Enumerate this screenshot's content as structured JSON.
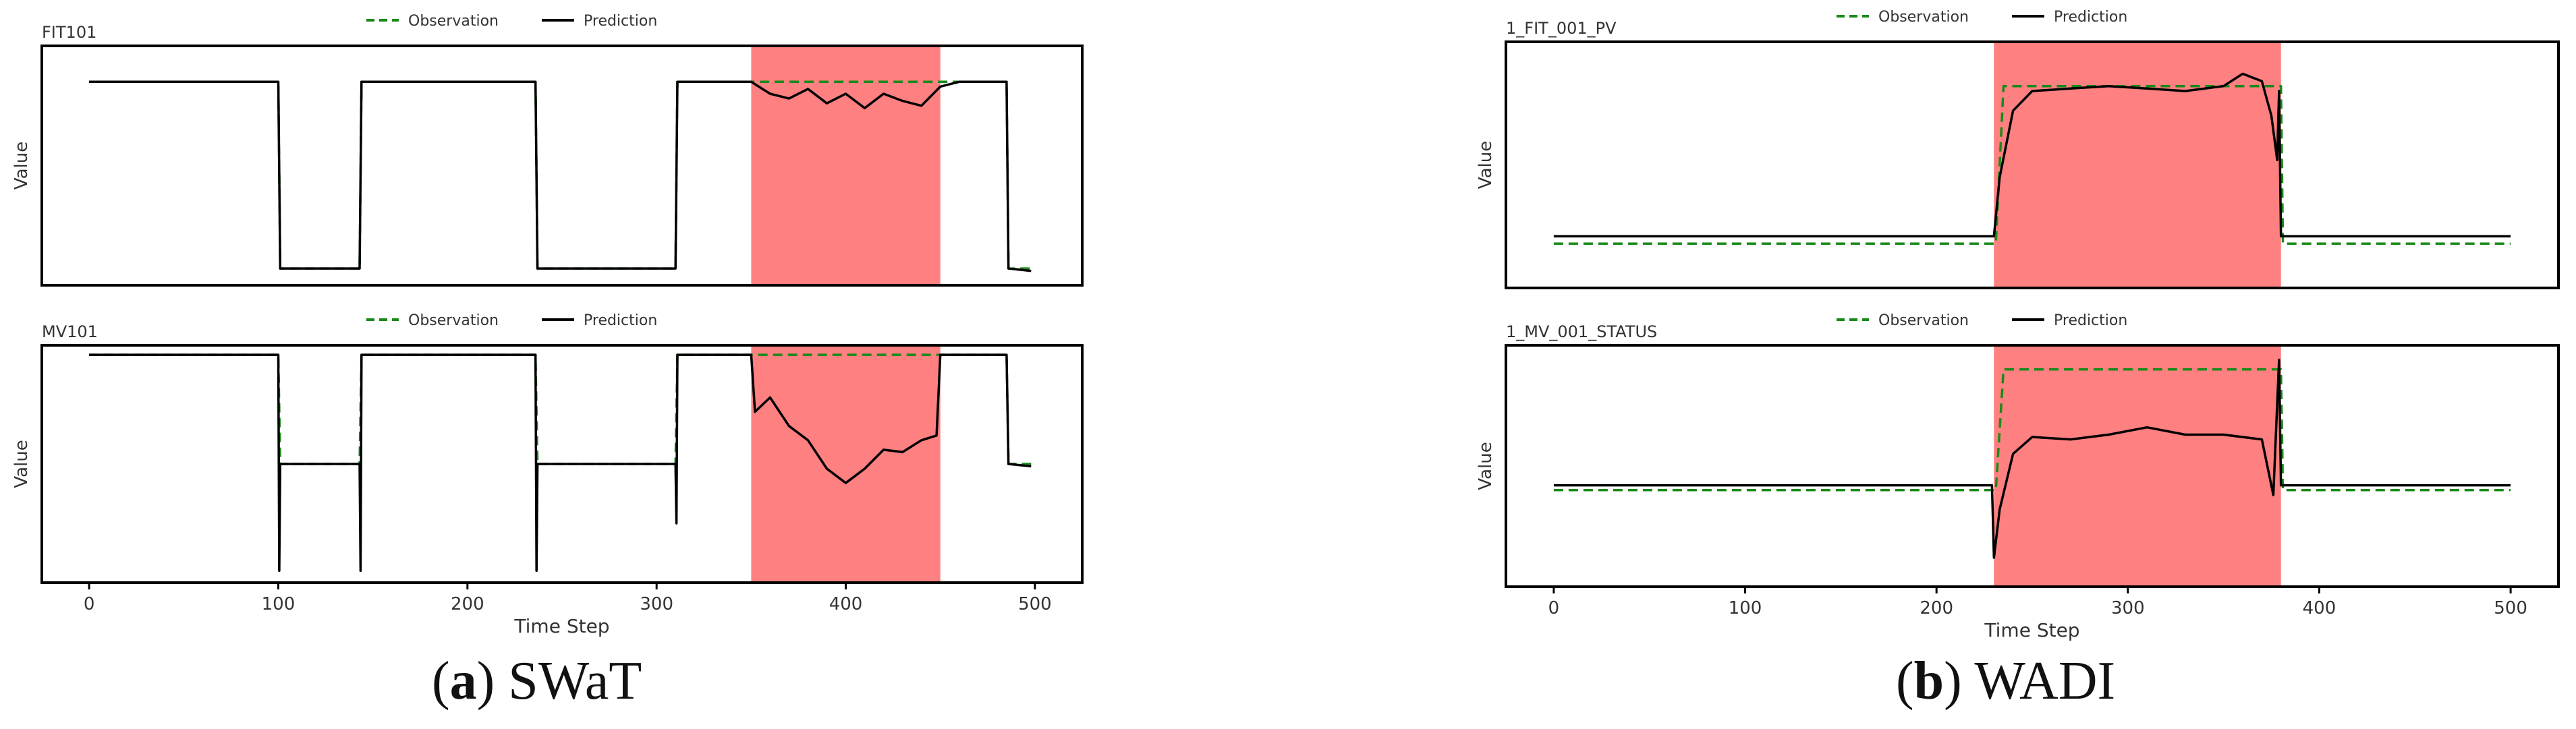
{
  "captions": [
    {
      "open": "(",
      "letter": "a",
      "close": ")",
      "name": " SWaT"
    },
    {
      "open": "(",
      "letter": "b",
      "close": ")",
      "name": " WADI"
    }
  ],
  "colors": {
    "observation": "#1a8a1a",
    "prediction": "#000000",
    "anomaly": "#ff8080",
    "frame": "#000000"
  },
  "chart_data": [
    {
      "type": "line",
      "title": "FIT101",
      "xlabel": "",
      "ylabel": "Value",
      "xlim": [
        -25,
        525
      ],
      "ylim": [
        0,
        1
      ],
      "xticks": [],
      "grid": false,
      "legend": "top-center",
      "anomaly_region": [
        350,
        450
      ],
      "series": [
        {
          "name": "Observation",
          "style": "dashed",
          "points": [
            [
              0,
              0.85
            ],
            [
              100,
              0.85
            ],
            [
              101,
              0.07
            ],
            [
              143,
              0.07
            ],
            [
              144,
              0.85
            ],
            [
              236,
              0.85
            ],
            [
              237,
              0.07
            ],
            [
              310,
              0.07
            ],
            [
              311,
              0.85
            ],
            [
              485,
              0.85
            ],
            [
              486,
              0.07
            ],
            [
              498,
              0.07
            ]
          ]
        },
        {
          "name": "Prediction",
          "style": "solid",
          "points": [
            [
              0,
              0.85
            ],
            [
              100,
              0.85
            ],
            [
              101,
              0.07
            ],
            [
              143,
              0.07
            ],
            [
              144,
              0.85
            ],
            [
              236,
              0.85
            ],
            [
              237,
              0.07
            ],
            [
              310,
              0.07
            ],
            [
              311,
              0.85
            ],
            [
              350,
              0.85
            ],
            [
              360,
              0.8
            ],
            [
              370,
              0.78
            ],
            [
              380,
              0.82
            ],
            [
              390,
              0.76
            ],
            [
              400,
              0.8
            ],
            [
              410,
              0.74
            ],
            [
              420,
              0.8
            ],
            [
              430,
              0.77
            ],
            [
              440,
              0.75
            ],
            [
              450,
              0.83
            ],
            [
              460,
              0.85
            ],
            [
              485,
              0.85
            ],
            [
              486,
              0.07
            ],
            [
              498,
              0.06
            ]
          ]
        }
      ]
    },
    {
      "type": "line",
      "title": "1_FIT_001_PV",
      "xlabel": "",
      "ylabel": "Value",
      "xlim": [
        -25,
        525
      ],
      "ylim": [
        0,
        1
      ],
      "xticks": [],
      "grid": false,
      "legend": "top-center",
      "anomaly_region": [
        230,
        380
      ],
      "series": [
        {
          "name": "Observation",
          "style": "dashed",
          "points": [
            [
              0,
              0.18
            ],
            [
              231,
              0.18
            ],
            [
              235,
              0.82
            ],
            [
              380,
              0.82
            ],
            [
              381,
              0.18
            ],
            [
              500,
              0.18
            ]
          ]
        },
        {
          "name": "Prediction",
          "style": "solid",
          "points": [
            [
              0,
              0.21
            ],
            [
              230,
              0.21
            ],
            [
              233,
              0.45
            ],
            [
              240,
              0.72
            ],
            [
              250,
              0.8
            ],
            [
              270,
              0.81
            ],
            [
              290,
              0.82
            ],
            [
              310,
              0.81
            ],
            [
              330,
              0.8
            ],
            [
              350,
              0.82
            ],
            [
              360,
              0.87
            ],
            [
              370,
              0.84
            ],
            [
              375,
              0.7
            ],
            [
              378,
              0.52
            ],
            [
              379,
              0.8
            ],
            [
              380,
              0.21
            ],
            [
              500,
              0.21
            ]
          ]
        }
      ]
    },
    {
      "type": "line",
      "title": "MV101",
      "xlabel": "Time Step",
      "ylabel": "Value",
      "xlim": [
        -25,
        525
      ],
      "ylim": [
        0,
        1
      ],
      "xticks": [
        0,
        100,
        200,
        300,
        400,
        500
      ],
      "grid": false,
      "legend": "top-center",
      "anomaly_region": [
        350,
        450
      ],
      "series": [
        {
          "name": "Observation",
          "style": "dashed",
          "points": [
            [
              0,
              0.96
            ],
            [
              100,
              0.96
            ],
            [
              101,
              0.5
            ],
            [
              143,
              0.5
            ],
            [
              144,
              0.96
            ],
            [
              236,
              0.96
            ],
            [
              237,
              0.5
            ],
            [
              310,
              0.5
            ],
            [
              311,
              0.96
            ],
            [
              450,
              0.96
            ],
            [
              451,
              0.96
            ],
            [
              485,
              0.96
            ],
            [
              486,
              0.5
            ],
            [
              498,
              0.5
            ]
          ]
        },
        {
          "name": "Prediction",
          "style": "solid",
          "points": [
            [
              0,
              0.96
            ],
            [
              100,
              0.96
            ],
            [
              100.5,
              0.05
            ],
            [
              101,
              0.5
            ],
            [
              143,
              0.5
            ],
            [
              143.5,
              0.05
            ],
            [
              144,
              0.96
            ],
            [
              236,
              0.96
            ],
            [
              236.5,
              0.05
            ],
            [
              237,
              0.5
            ],
            [
              310,
              0.5
            ],
            [
              310.5,
              0.25
            ],
            [
              311,
              0.96
            ],
            [
              350,
              0.96
            ],
            [
              352,
              0.72
            ],
            [
              360,
              0.78
            ],
            [
              370,
              0.66
            ],
            [
              380,
              0.6
            ],
            [
              390,
              0.48
            ],
            [
              400,
              0.42
            ],
            [
              410,
              0.48
            ],
            [
              420,
              0.56
            ],
            [
              430,
              0.55
            ],
            [
              440,
              0.6
            ],
            [
              448,
              0.62
            ],
            [
              450,
              0.96
            ],
            [
              485,
              0.96
            ],
            [
              486,
              0.5
            ],
            [
              498,
              0.49
            ]
          ]
        }
      ]
    },
    {
      "type": "line",
      "title": "1_MV_001_STATUS",
      "xlabel": "Time Step",
      "ylabel": "Value",
      "xlim": [
        -25,
        525
      ],
      "ylim": [
        0,
        1
      ],
      "xticks": [
        0,
        100,
        200,
        300,
        400,
        500
      ],
      "grid": false,
      "legend": "top-center",
      "anomaly_region": [
        230,
        380
      ],
      "series": [
        {
          "name": "Observation",
          "style": "dashed",
          "points": [
            [
              0,
              0.4
            ],
            [
              231,
              0.4
            ],
            [
              235,
              0.9
            ],
            [
              380,
              0.9
            ],
            [
              381,
              0.4
            ],
            [
              500,
              0.4
            ]
          ]
        },
        {
          "name": "Prediction",
          "style": "solid",
          "points": [
            [
              0,
              0.42
            ],
            [
              229,
              0.42
            ],
            [
              230,
              0.12
            ],
            [
              233,
              0.32
            ],
            [
              240,
              0.55
            ],
            [
              250,
              0.62
            ],
            [
              270,
              0.61
            ],
            [
              290,
              0.63
            ],
            [
              310,
              0.66
            ],
            [
              330,
              0.63
            ],
            [
              350,
              0.63
            ],
            [
              370,
              0.61
            ],
            [
              376,
              0.38
            ],
            [
              379,
              0.94
            ],
            [
              380,
              0.42
            ],
            [
              500,
              0.42
            ]
          ]
        }
      ]
    }
  ]
}
